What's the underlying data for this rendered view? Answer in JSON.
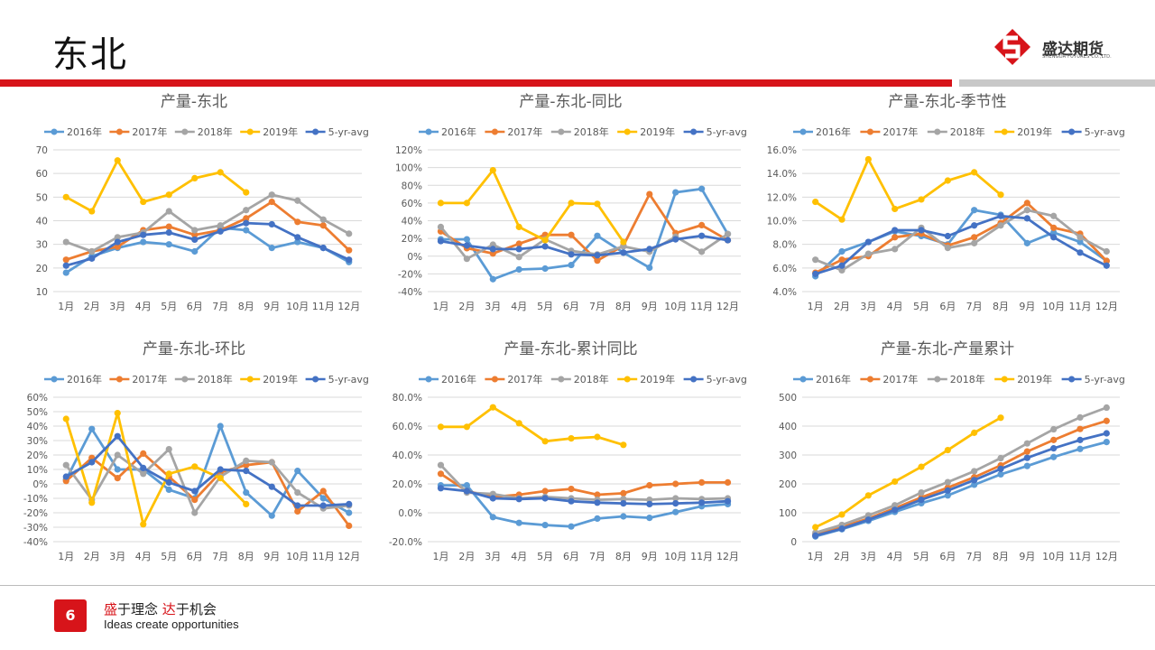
{
  "page": {
    "title": "东北",
    "page_number": "6",
    "slogan_cn_1": "盛",
    "slogan_cn_2": "于理念 ",
    "slogan_cn_3": "达",
    "slogan_cn_4": "于机会",
    "slogan_en": "Ideas create opportunities"
  },
  "brand": {
    "name": "盛达期货",
    "sub": "SHENGDA FUTURES CO.,LTD.",
    "accent": "#d7141a"
  },
  "colors": {
    "2016年": "#5b9bd5",
    "2017年": "#ed7d31",
    "2018年": "#a5a5a5",
    "2019年": "#ffc000",
    "5-yr-avg": "#4472c4"
  },
  "chart_data": [
    {
      "type": "line",
      "title": "产量-东北",
      "categories": [
        "1月",
        "2月",
        "3月",
        "4月",
        "5月",
        "6月",
        "7月",
        "8月",
        "9月",
        "10月",
        "11月",
        "12月"
      ],
      "ylim": [
        10,
        70
      ],
      "yticks": [
        10,
        20,
        30,
        40,
        50,
        60,
        70
      ],
      "ytick_labels": [
        "10",
        "20",
        "30",
        "40",
        "50",
        "60",
        "70"
      ],
      "grid": true,
      "legend": "top",
      "series": [
        {
          "name": "2016年",
          "values": [
            18,
            25,
            28.5,
            31,
            30,
            27,
            37,
            36,
            28.5,
            31,
            28.5,
            22.5
          ]
        },
        {
          "name": "2017年",
          "values": [
            23.5,
            27,
            29,
            36,
            37.5,
            34,
            36,
            41,
            48,
            39.5,
            38,
            27.5
          ]
        },
        {
          "name": "2018年",
          "values": [
            31,
            27,
            33,
            35,
            44,
            36,
            38,
            44.5,
            51,
            48.5,
            40.5,
            34.5
          ]
        },
        {
          "name": "2019年",
          "values": [
            50,
            44,
            65.5,
            48,
            51,
            58,
            60.5,
            52,
            null,
            null,
            null,
            null
          ]
        },
        {
          "name": "5-yr-avg",
          "values": [
            21,
            24,
            31,
            34,
            35,
            32,
            35.5,
            39,
            38.5,
            33,
            28.5,
            23.5
          ]
        }
      ]
    },
    {
      "type": "line",
      "title": "产量-东北-同比",
      "categories": [
        "1月",
        "2月",
        "3月",
        "4月",
        "5月",
        "6月",
        "7月",
        "8月",
        "9月",
        "10月",
        "11月",
        "12月"
      ],
      "ylim": [
        -40,
        120
      ],
      "yticks": [
        -40,
        -20,
        0,
        20,
        40,
        60,
        80,
        100,
        120
      ],
      "ytick_labels": [
        "-40%",
        "-20%",
        "0%",
        "20%",
        "40%",
        "60%",
        "80%",
        "100%",
        "120%"
      ],
      "grid": true,
      "legend": "top",
      "series": [
        {
          "name": "2016年",
          "values": [
            19,
            19,
            -26,
            -15,
            -14,
            -10,
            23,
            4,
            -13,
            72,
            76,
            25
          ]
        },
        {
          "name": "2017年",
          "values": [
            28,
            9,
            3,
            14,
            24,
            24,
            -5,
            12,
            70,
            26,
            35,
            18
          ]
        },
        {
          "name": "2018年",
          "values": [
            33,
            -3,
            13,
            -1,
            19,
            6,
            2,
            11,
            5,
            22,
            5,
            25
          ]
        },
        {
          "name": "2019年",
          "values": [
            60,
            60,
            97,
            33,
            18,
            60,
            59,
            16,
            null,
            null,
            null,
            null
          ]
        },
        {
          "name": "5-yr-avg",
          "values": [
            17,
            12,
            8,
            8,
            11,
            2,
            1,
            4,
            8,
            19,
            23,
            18
          ]
        }
      ]
    },
    {
      "type": "line",
      "title": "产量-东北-季节性",
      "categories": [
        "1月",
        "2月",
        "3月",
        "4月",
        "5月",
        "6月",
        "7月",
        "8月",
        "9月",
        "10月",
        "11月",
        "12月"
      ],
      "ylim": [
        4,
        16
      ],
      "yticks": [
        4,
        6,
        8,
        10,
        12,
        14,
        16
      ],
      "ytick_labels": [
        "4.0%",
        "6.0%",
        "8.0%",
        "10.0%",
        "12.0%",
        "14.0%",
        "16.0%"
      ],
      "grid": true,
      "legend": "top",
      "series": [
        {
          "name": "2016年",
          "values": [
            5.3,
            7.4,
            8.2,
            9.1,
            8.7,
            8.0,
            10.9,
            10.5,
            8.1,
            9.0,
            8.2,
            6.6
          ]
        },
        {
          "name": "2017年",
          "values": [
            5.6,
            6.7,
            7.0,
            8.6,
            8.9,
            7.9,
            8.6,
            9.8,
            11.5,
            9.4,
            8.9,
            6.6
          ]
        },
        {
          "name": "2018年",
          "values": [
            6.7,
            5.8,
            7.2,
            7.6,
            9.4,
            7.7,
            8.1,
            9.6,
            10.9,
            10.4,
            8.6,
            7.4
          ]
        },
        {
          "name": "2019年",
          "values": [
            11.6,
            10.1,
            15.2,
            11.0,
            11.8,
            13.4,
            14.1,
            12.2,
            null,
            null,
            null,
            null
          ]
        },
        {
          "name": "5-yr-avg",
          "values": [
            5.5,
            6.2,
            8.2,
            9.2,
            9.2,
            8.7,
            9.6,
            10.4,
            10.2,
            8.6,
            7.3,
            6.2
          ]
        }
      ]
    },
    {
      "type": "line",
      "title": "产量-东北-环比",
      "categories": [
        "1月",
        "2月",
        "3月",
        "4月",
        "5月",
        "6月",
        "7月",
        "8月",
        "9月",
        "10月",
        "11月",
        "12月"
      ],
      "ylim": [
        -40,
        60
      ],
      "yticks": [
        -40,
        -30,
        -20,
        -10,
        0,
        10,
        20,
        30,
        40,
        50,
        60
      ],
      "ytick_labels": [
        "-40%",
        "-30%",
        "-20%",
        "-10%",
        "0%",
        "10%",
        "20%",
        "30%",
        "40%",
        "50%",
        "60%"
      ],
      "grid": true,
      "legend": "top",
      "series": [
        {
          "name": "2016年",
          "values": [
            3,
            38,
            10,
            10,
            -4,
            -10,
            40,
            -6,
            -22,
            9,
            -10,
            -20
          ]
        },
        {
          "name": "2017年",
          "values": [
            2,
            18,
            4,
            21,
            5,
            -11,
            8,
            13,
            15,
            -19,
            -5,
            -29
          ]
        },
        {
          "name": "2018年",
          "values": [
            13,
            -11,
            20,
            7,
            24,
            -20,
            5,
            16,
            15,
            -6,
            -17,
            -15
          ]
        },
        {
          "name": "2019年",
          "values": [
            45,
            -13,
            49,
            -28,
            7,
            12,
            4,
            -14,
            null,
            null,
            null,
            null
          ]
        },
        {
          "name": "5-yr-avg",
          "values": [
            5,
            15,
            33,
            11,
            1,
            -5,
            10,
            9,
            -2,
            -15,
            -15,
            -14
          ]
        }
      ]
    },
    {
      "type": "line",
      "title": "产量-东北-累计同比",
      "categories": [
        "1月",
        "2月",
        "3月",
        "4月",
        "5月",
        "6月",
        "7月",
        "8月",
        "9月",
        "10月",
        "11月",
        "12月"
      ],
      "ylim": [
        -20,
        80
      ],
      "yticks": [
        -20,
        0,
        20,
        40,
        60,
        80
      ],
      "ytick_labels": [
        "-20.0%",
        "0.0%",
        "20.0%",
        "40.0%",
        "60.0%",
        "80.0%"
      ],
      "grid": true,
      "legend": "top",
      "series": [
        {
          "name": "2016年",
          "values": [
            19,
            19,
            -3,
            -7,
            -8.5,
            -9.5,
            -4,
            -2.5,
            -3.5,
            0.5,
            4.5,
            6
          ]
        },
        {
          "name": "2017年",
          "values": [
            27,
            15,
            11,
            12.5,
            15,
            16.5,
            12.5,
            13.5,
            19,
            20,
            21,
            21
          ]
        },
        {
          "name": "2018年",
          "values": [
            33,
            14,
            13,
            10,
            11,
            10,
            9,
            9.5,
            9,
            10,
            9.5,
            10
          ]
        },
        {
          "name": "2019年",
          "values": [
            59.5,
            59.5,
            73,
            62,
            49.5,
            51.5,
            52.5,
            47,
            null,
            null,
            null,
            null
          ]
        },
        {
          "name": "5-yr-avg",
          "values": [
            17,
            15,
            10,
            9.5,
            10,
            8,
            7,
            6.5,
            6,
            6.5,
            7,
            8
          ]
        }
      ]
    },
    {
      "type": "line",
      "title": "产量-东北-产量累计",
      "categories": [
        "1月",
        "2月",
        "3月",
        "4月",
        "5月",
        "6月",
        "7月",
        "8月",
        "9月",
        "10月",
        "11月",
        "12月"
      ],
      "ylim": [
        0,
        500
      ],
      "yticks": [
        0,
        100,
        200,
        300,
        400,
        500
      ],
      "ytick_labels": [
        "0",
        "100",
        "200",
        "300",
        "400",
        "500"
      ],
      "grid": true,
      "legend": "top",
      "series": [
        {
          "name": "2016年",
          "values": [
            18,
            43,
            72,
            103,
            133,
            160,
            197,
            233,
            262,
            293,
            321,
            345
          ]
        },
        {
          "name": "2017年",
          "values": [
            24,
            51,
            80,
            116,
            153,
            187,
            223,
            264,
            312,
            352,
            390,
            418
          ]
        },
        {
          "name": "2018年",
          "values": [
            31,
            58,
            91,
            126,
            170,
            206,
            244,
            289,
            340,
            389,
            430,
            464
          ]
        },
        {
          "name": "2019年",
          "values": [
            50,
            94,
            160,
            208,
            259,
            317,
            377,
            429,
            null,
            null,
            null,
            null
          ]
        },
        {
          "name": "5-yr-avg",
          "values": [
            21,
            45,
            76,
            110,
            145,
            177,
            213,
            252,
            290,
            323,
            352,
            375
          ]
        }
      ]
    }
  ]
}
